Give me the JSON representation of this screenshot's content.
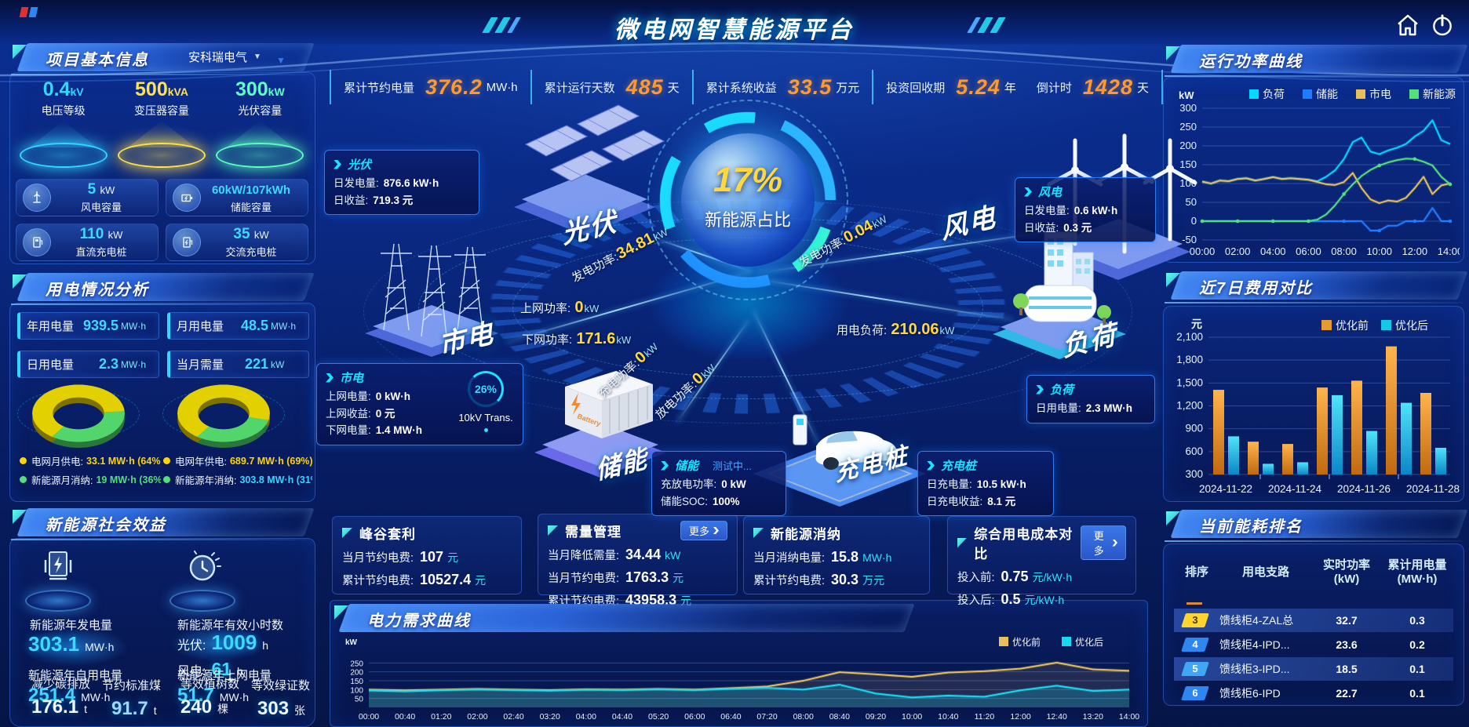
{
  "app": {
    "title": "微电网智慧能源平台"
  },
  "stats": [
    {
      "label": "累计节约电量",
      "value": "376.2",
      "unit": "MW·h"
    },
    {
      "label": "累计运行天数",
      "value": "485",
      "unit": "天"
    },
    {
      "label": "累计系统收益",
      "value": "33.5",
      "unit": "万元"
    },
    {
      "label": "投资回收期",
      "value": "5.24",
      "unit": "年"
    },
    {
      "label": "倒计时",
      "value": "1428",
      "unit": "天"
    }
  ],
  "project": {
    "title": "项目基本信息",
    "company": "安科瑞电气",
    "pedestals": [
      {
        "value": "0.4",
        "unit": "kV",
        "label": "电压等级",
        "color": "#35d6ff"
      },
      {
        "value": "500",
        "unit": "kVA",
        "label": "变压器容量",
        "color": "#ffe14d"
      },
      {
        "value": "300",
        "unit": "kW",
        "label": "光伏容量",
        "color": "#5cffc0"
      }
    ],
    "cards": [
      {
        "value": "5",
        "unit": "kW",
        "label": "风电容量",
        "icon": "wind-turbine-icon"
      },
      {
        "value": "60kW/107kWh",
        "unit": "",
        "label": "储能容量",
        "icon": "battery-icon"
      },
      {
        "value": "110",
        "unit": "kW",
        "label": "直流充电桩",
        "icon": "dc-charger-icon"
      },
      {
        "value": "35",
        "unit": "kW",
        "label": "交流充电桩",
        "icon": "ac-charger-icon"
      }
    ]
  },
  "usage": {
    "title": "用电情况分析",
    "chips": [
      {
        "label": "年用电量",
        "value": "939.5",
        "unit": "MW·h"
      },
      {
        "label": "月用电量",
        "value": "48.5",
        "unit": "MW·h"
      },
      {
        "label": "日用电量",
        "value": "2.3",
        "unit": "MW·h"
      },
      {
        "label": "当月需量",
        "value": "221",
        "unit": "kW"
      }
    ],
    "donut_legends": [
      {
        "dot": "#ffd400",
        "label": "电网月供电:",
        "value": "33.1 MW·h (64%)",
        "value_color": "#ffd400"
      },
      {
        "dot": "#52e07a",
        "label": "新能源月消纳:",
        "value": "19 MW·h (36%)",
        "value_color": "#52e07a"
      },
      {
        "dot": "#ffd400",
        "label": "电网年供电:",
        "value": "689.7 MW·h (69%)",
        "value_color": "#ffd400"
      },
      {
        "dot": "#52e07a",
        "label": "新能源年消纳:",
        "value": "303.8 MW·h (31%)",
        "value_color": "#35d6ff"
      }
    ]
  },
  "benefits": {
    "title": "新能源社会效益",
    "generation": {
      "label": "新能源年发电量",
      "value": "303.1",
      "unit": "MW·h"
    },
    "hours": {
      "label": "新能源年有效小时数",
      "pv_label": "光伏:",
      "pv_value": "1009",
      "pv_unit": "h",
      "wind_label": "风电:",
      "wind_value": "61",
      "wind_unit": "h"
    },
    "self_use": {
      "label": "新能源年自用电量",
      "value": "251.4",
      "unit": "MW·h"
    },
    "to_grid": {
      "label": "新能源年上网电量",
      "value": "51.7",
      "unit": "MW·h"
    },
    "co2": {
      "label": "减少碳排放",
      "value": "176.1",
      "unit": "t"
    },
    "coal": {
      "label": "节约标准煤",
      "value": "91.7",
      "unit": "t"
    },
    "trees": {
      "label": "等效植树数",
      "value": "240",
      "unit": "棵"
    },
    "certs": {
      "label": "等效绿证数",
      "value": "303",
      "unit": "张"
    }
  },
  "center": {
    "gauge": {
      "value": "17%",
      "label": "新能源占比"
    },
    "nodes": {
      "pv": "光伏",
      "grid": "市电",
      "wind": "风电",
      "load": "负荷",
      "storage": "储能",
      "charger": "充电桩"
    },
    "boxes": {
      "pv": {
        "title": "光伏",
        "rows": [
          {
            "label": "日发电量:",
            "value": "876.6 kW·h"
          },
          {
            "label": "日收益:",
            "value": "719.3 元"
          }
        ]
      },
      "wind": {
        "title": "风电",
        "rows": [
          {
            "label": "日发电量:",
            "value": "0.6 kW·h"
          },
          {
            "label": "日收益:",
            "value": "0.3 元"
          }
        ]
      },
      "grid": {
        "title": "市电",
        "rows": [
          {
            "label": "上网电量:",
            "value": "0 kW·h"
          },
          {
            "label": "上网收益:",
            "value": "0 元"
          },
          {
            "label": "下网电量:",
            "value": "1.4 MW·h"
          }
        ]
      },
      "load": {
        "title": "负荷",
        "rows": [
          {
            "label": "日用电量:",
            "value": "2.3 MW·h"
          }
        ]
      },
      "storage": {
        "title": "储能",
        "badge": "测试中...",
        "rows": [
          {
            "label": "充放电功率:",
            "value": "0 kW"
          },
          {
            "label": "储能SOC:",
            "value": "100%"
          }
        ]
      },
      "charger": {
        "title": "充电桩",
        "rows": [
          {
            "label": "日充电量:",
            "value": "10.5 kW·h"
          },
          {
            "label": "日充电收益:",
            "value": "8.1 元"
          }
        ]
      }
    },
    "transformer": {
      "percent": "26%",
      "label": "10kV Trans."
    },
    "flows": {
      "pv_gen": {
        "label": "发电功率:",
        "value": "34.81",
        "unit": "kW"
      },
      "grid_up": {
        "label": "上网功率:",
        "value": "0",
        "unit": "kW"
      },
      "grid_down": {
        "label": "下网功率:",
        "value": "171.6",
        "unit": "kW"
      },
      "wind_gen": {
        "label": "发电功率:",
        "value": "0.04",
        "unit": "kW"
      },
      "load_power": {
        "label": "用电负荷:",
        "value": "210.06",
        "unit": "kW"
      },
      "charge": {
        "label": "充电功率:",
        "value": "0",
        "unit": "kW"
      },
      "discharge": {
        "label": "放电功率:",
        "value": "0",
        "unit": "kW"
      }
    }
  },
  "cards": [
    {
      "title": "峰谷套利",
      "more": null,
      "rows": [
        {
          "label": "当月节约电费:",
          "value": "107",
          "unit": "元"
        },
        {
          "label": "累计节约电费:",
          "value": "10527.4",
          "unit": "元"
        }
      ]
    },
    {
      "title": "需量管理",
      "more": "更多",
      "rows": [
        {
          "label": "当月降低需量:",
          "value": "34.44",
          "unit": "kW"
        },
        {
          "label": "当月节约电费:",
          "value": "1763.3",
          "unit": "元"
        },
        {
          "label": "累计节约电费:",
          "value": "43958.3",
          "unit": "元"
        }
      ]
    },
    {
      "title": "新能源消纳",
      "more": null,
      "rows": [
        {
          "label": "当月消纳电量:",
          "value": "15.8",
          "unit": "MW·h"
        },
        {
          "label": "累计节约电费:",
          "value": "30.3",
          "unit": "万元"
        }
      ]
    },
    {
      "title": "综合用电成本对比",
      "more": "更多",
      "rows": [
        {
          "label": "投入前:",
          "value": "0.75",
          "unit": "元/kW·h"
        },
        {
          "label": "投入后:",
          "value": "0.5",
          "unit": "元/kW·h"
        }
      ]
    }
  ],
  "panels": {
    "power_curve": "运行功率曲线",
    "cost_compare": "近7日费用对比",
    "ranking": "当前能耗排名",
    "demand_curve": "电力需求曲线"
  },
  "ranking": {
    "headers": [
      {
        "l1": "排序",
        "l2": ""
      },
      {
        "l1": "用电支路",
        "l2": ""
      },
      {
        "l1": "实时功率",
        "l2": "(kW)"
      },
      {
        "l1": "累计用电量",
        "l2": "(MW·h)"
      }
    ],
    "rows": [
      {
        "rank": "3",
        "branch": "馈线柜4-ZAL总",
        "power": "32.7",
        "energy": "0.3",
        "badge": "#ffd42e",
        "badge_text": "#4a3800",
        "highlight": true
      },
      {
        "rank": "4",
        "branch": "馈线柜4-IPD...",
        "power": "23.6",
        "energy": "0.2",
        "badge": "#2e86f0",
        "badge_text": "#ffffff",
        "highlight": false
      },
      {
        "rank": "5",
        "branch": "馈线柜3-IPD...",
        "power": "18.5",
        "energy": "0.1",
        "badge": "#41a7f5",
        "badge_text": "#ffffff",
        "highlight": true
      },
      {
        "rank": "6",
        "branch": "馈线柜6-IPD",
        "power": "22.7",
        "energy": "0.1",
        "badge": "#2e86f0",
        "badge_text": "#ffffff",
        "highlight": false
      }
    ]
  },
  "chart_data": [
    {
      "id": "power-curve",
      "type": "line",
      "title": "运行功率曲线",
      "ylabel": "kW",
      "ylim": [
        -50,
        300
      ],
      "yticks": [
        300,
        250,
        200,
        150,
        100,
        50,
        0,
        -50
      ],
      "grid": true,
      "legend_position": "top",
      "x_labels": [
        "00:00",
        "02:00",
        "04:00",
        "06:00",
        "08:00",
        "10:00",
        "12:00",
        "14:00"
      ],
      "series": [
        {
          "name": "负荷",
          "color": "#00d8ff",
          "values": [
            105,
            100,
            108,
            106,
            112,
            114,
            108,
            112,
            117,
            112,
            114,
            112,
            110,
            106,
            118,
            135,
            165,
            210,
            222,
            185,
            178,
            188,
            195,
            205,
            225,
            240,
            268,
            215,
            205
          ]
        },
        {
          "name": "储能",
          "color": "#1f7bff",
          "values": [
            0,
            0,
            0,
            0,
            0,
            0,
            0,
            0,
            0,
            0,
            0,
            0,
            0,
            0,
            0,
            0,
            0,
            0,
            0,
            -25,
            -25,
            -12,
            -12,
            0,
            0,
            0,
            35,
            0,
            0
          ]
        },
        {
          "name": "市电",
          "color": "#e8c05a",
          "values": [
            105,
            100,
            108,
            106,
            112,
            114,
            108,
            112,
            117,
            112,
            114,
            112,
            110,
            104,
            98,
            96,
            104,
            128,
            88,
            58,
            48,
            55,
            52,
            62,
            88,
            118,
            72,
            95,
            100
          ]
        },
        {
          "name": "新能源",
          "color": "#52e07a",
          "values": [
            0,
            0,
            0,
            0,
            0,
            0,
            0,
            0,
            0,
            0,
            0,
            0,
            0,
            4,
            18,
            42,
            72,
            98,
            120,
            136,
            148,
            156,
            162,
            166,
            165,
            158,
            148,
            118,
            98
          ]
        }
      ]
    },
    {
      "id": "cost-compare",
      "type": "bar",
      "title": "近7日费用对比",
      "ylabel": "元",
      "ylim": [
        300,
        2100
      ],
      "yticks": [
        2100,
        1800,
        1500,
        1200,
        900,
        600,
        300
      ],
      "grid": true,
      "legend_position": "top-right",
      "categories": [
        "2024-11-22",
        "2024-11-23",
        "2024-11-24",
        "2024-11-25",
        "2024-11-26",
        "2024-11-27",
        "2024-11-28"
      ],
      "visible_category_labels": [
        "2024-11-22",
        "2024-11-24",
        "2024-11-26",
        "2024-11-28"
      ],
      "series": [
        {
          "name": "优化前",
          "color": "#e59b30",
          "values": [
            1410,
            730,
            700,
            1440,
            1530,
            1980,
            1370
          ]
        },
        {
          "name": "优化后",
          "color": "#15c8e6",
          "values": [
            800,
            440,
            460,
            1340,
            870,
            1240,
            650
          ]
        }
      ]
    },
    {
      "id": "demand-curve",
      "type": "line",
      "title": "电力需求曲线",
      "ylabel": "kW",
      "ylim": [
        0,
        300
      ],
      "yticks": [
        250,
        200,
        150,
        100,
        50
      ],
      "grid": true,
      "legend_position": "top-right",
      "x_labels": [
        "00:00",
        "00:40",
        "01:20",
        "02:00",
        "02:40",
        "03:20",
        "04:00",
        "04:40",
        "05:20",
        "06:00",
        "06:40",
        "07:20",
        "08:00",
        "08:40",
        "09:20",
        "10:00",
        "10:40",
        "11:20",
        "12:00",
        "12:40",
        "13:20",
        "14:00"
      ],
      "series": [
        {
          "name": "优化前",
          "color": "#e8c05a",
          "values": [
            100,
            96,
            100,
            104,
            100,
            97,
            102,
            100,
            104,
            100,
            108,
            118,
            150,
            198,
            186,
            172,
            196,
            204,
            218,
            252,
            214,
            206
          ]
        },
        {
          "name": "优化后",
          "color": "#17d9f2",
          "values": [
            95,
            90,
            96,
            100,
            97,
            94,
            99,
            97,
            101,
            97,
            104,
            110,
            100,
            128,
            78,
            56,
            66,
            60,
            96,
            122,
            92,
            100
          ]
        }
      ]
    },
    {
      "id": "monthly-supply-donut",
      "type": "pie",
      "values": [
        64,
        36
      ],
      "colors": [
        "#e3d000",
        "#52d66b"
      ],
      "legend": [
        "电网月供电",
        "新能源月消纳"
      ]
    },
    {
      "id": "yearly-supply-donut",
      "type": "pie",
      "values": [
        69,
        31
      ],
      "colors": [
        "#e3d000",
        "#52d66b"
      ],
      "legend": [
        "电网年供电",
        "新能源年消纳"
      ]
    }
  ]
}
